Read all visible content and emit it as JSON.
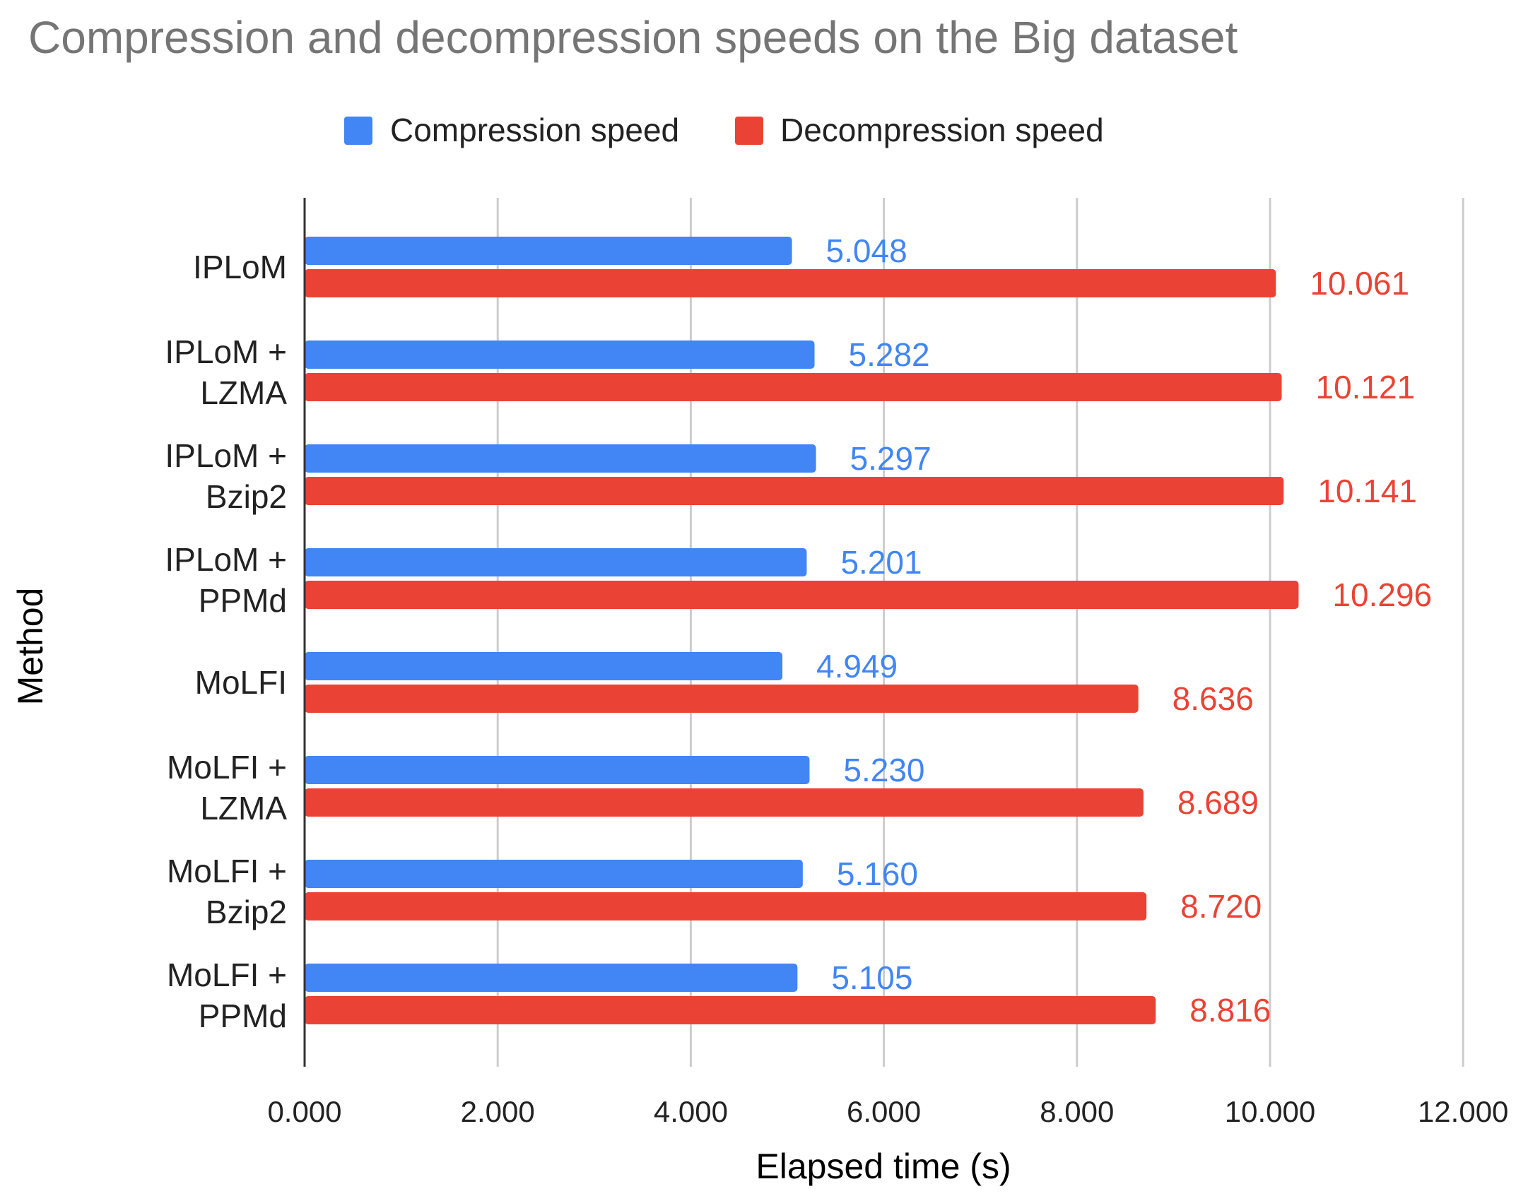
{
  "chart_data": {
    "type": "bar",
    "orientation": "horizontal",
    "title": "Compression and decompression speeds on the Big dataset",
    "xlabel": "Elapsed time (s)",
    "ylabel": "Method",
    "xlim": [
      0,
      12
    ],
    "x_ticks": [
      0,
      2,
      4,
      6,
      8,
      10,
      12
    ],
    "x_tick_labels": [
      "0.000",
      "2.000",
      "4.000",
      "6.000",
      "8.000",
      "10.000",
      "12.000"
    ],
    "grid": true,
    "legend_position": "top",
    "categories": [
      [
        "IPLoM"
      ],
      [
        "IPLoM +",
        "LZMA"
      ],
      [
        "IPLoM +",
        "Bzip2"
      ],
      [
        "IPLoM +",
        "PPMd"
      ],
      [
        "MoLFI"
      ],
      [
        "MoLFI +",
        "LZMA"
      ],
      [
        "MoLFI +",
        "Bzip2"
      ],
      [
        "MoLFI +",
        "PPMd"
      ]
    ],
    "series": [
      {
        "name": "Compression speed",
        "color": "#4285F4",
        "values": [
          5.048,
          5.282,
          5.297,
          5.201,
          4.949,
          5.23,
          5.16,
          5.105
        ],
        "labels": [
          "5.048",
          "5.282",
          "5.297",
          "5.201",
          "4.949",
          "5.230",
          "5.160",
          "5.105"
        ]
      },
      {
        "name": "Decompression speed",
        "color": "#EA4335",
        "values": [
          10.061,
          10.121,
          10.141,
          10.296,
          8.636,
          8.689,
          8.72,
          8.816
        ],
        "labels": [
          "10.061",
          "10.121",
          "10.141",
          "10.296",
          "8.636",
          "8.689",
          "8.720",
          "8.816"
        ]
      }
    ]
  }
}
